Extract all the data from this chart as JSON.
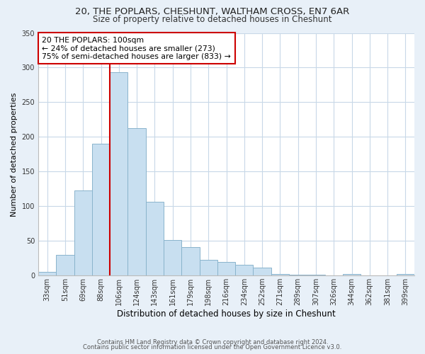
{
  "title": "20, THE POPLARS, CHESHUNT, WALTHAM CROSS, EN7 6AR",
  "subtitle": "Size of property relative to detached houses in Cheshunt",
  "xlabel": "Distribution of detached houses by size in Cheshunt",
  "ylabel": "Number of detached properties",
  "footer_line1": "Contains HM Land Registry data © Crown copyright and database right 2024.",
  "footer_line2": "Contains public sector information licensed under the Open Government Licence v3.0.",
  "bar_labels": [
    "33sqm",
    "51sqm",
    "69sqm",
    "88sqm",
    "106sqm",
    "124sqm",
    "143sqm",
    "161sqm",
    "179sqm",
    "198sqm",
    "216sqm",
    "234sqm",
    "252sqm",
    "271sqm",
    "289sqm",
    "307sqm",
    "326sqm",
    "344sqm",
    "362sqm",
    "381sqm",
    "399sqm"
  ],
  "bar_values": [
    5,
    30,
    123,
    190,
    293,
    213,
    106,
    51,
    41,
    23,
    20,
    16,
    11,
    2,
    1,
    1,
    0,
    2,
    0,
    0,
    2
  ],
  "bar_color": "#c8dff0",
  "bar_edge_color": "#8ab4cc",
  "vline_x_index": 4,
  "vline_color": "#cc0000",
  "annotation_title": "20 THE POPLARS: 100sqm",
  "annotation_line1": "← 24% of detached houses are smaller (273)",
  "annotation_line2": "75% of semi-detached houses are larger (833) →",
  "annotation_box_color": "#ffffff",
  "annotation_box_edge_color": "#cc0000",
  "ylim": [
    0,
    350
  ],
  "yticks": [
    0,
    50,
    100,
    150,
    200,
    250,
    300,
    350
  ],
  "background_color": "#e8f0f8",
  "plot_background_color": "#ffffff",
  "title_fontsize": 9.5,
  "subtitle_fontsize": 8.5,
  "grid_color": "#c8d8e8"
}
